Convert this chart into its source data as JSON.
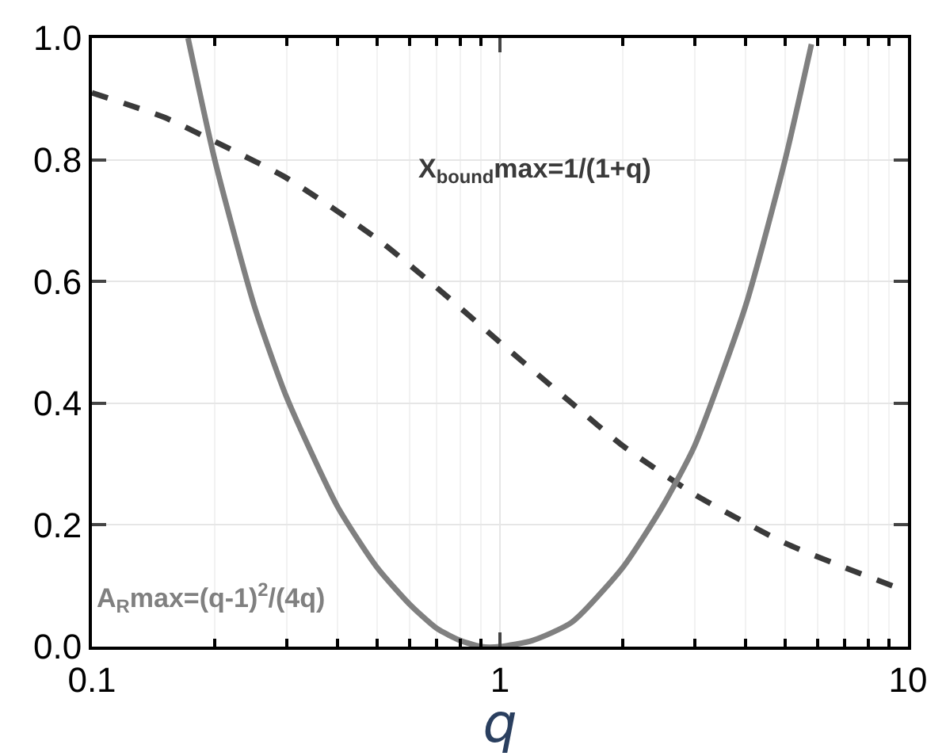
{
  "chart_data": {
    "type": "line",
    "xlabel": "q",
    "xlim": [
      0.1,
      10
    ],
    "xticks": [
      0.1,
      1,
      10
    ],
    "ylim": [
      0,
      1
    ],
    "yticks": [
      {
        "value": 0,
        "label": "0.0"
      },
      0.2,
      0.4,
      0.6,
      0.8,
      {
        "value": 1,
        "label": "1.0"
      }
    ],
    "log": "x",
    "grid": true,
    "legend": false,
    "series": [
      {
        "name": "X$_{bound}$max=1/(1+q)",
        "color": "#3a3a3a",
        "line_style": "dashed",
        "x": [
          0.1,
          0.15,
          0.2,
          0.3,
          0.5,
          0.7,
          1,
          1.5,
          2,
          3,
          5,
          7,
          10
        ],
        "values": [
          0.91,
          0.87,
          0.83,
          0.77,
          0.67,
          0.59,
          0.5,
          0.4,
          0.33,
          0.25,
          0.17,
          0.13,
          0.09
        ]
      },
      {
        "name": "A$_{R}$max=(q-1)$^{2}$/(4q)",
        "color": "#808080",
        "line_style": "solid",
        "x": [
          0.172,
          0.2,
          0.25,
          0.3,
          0.4,
          0.5,
          0.6,
          0.7,
          0.8,
          0.9,
          1,
          1.2,
          1.5,
          2,
          2.5,
          3,
          4,
          5,
          5.8
        ],
        "values": [
          1.0,
          0.8,
          0.56,
          0.41,
          0.23,
          0.13,
          0.07,
          0.03,
          0.01,
          0.0,
          0.0,
          0.01,
          0.04,
          0.13,
          0.23,
          0.33,
          0.56,
          0.8,
          0.99
        ]
      }
    ]
  }
}
